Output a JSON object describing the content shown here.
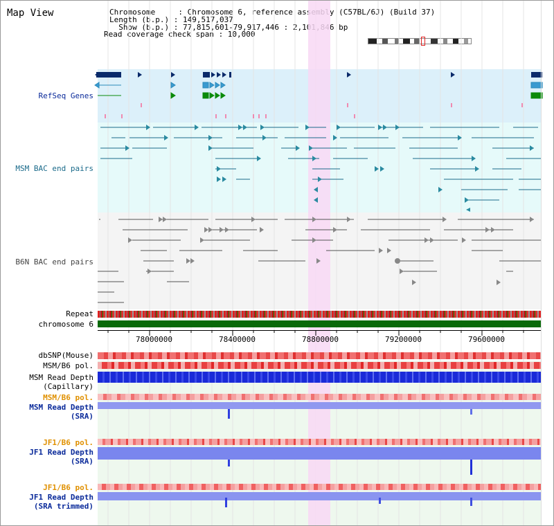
{
  "title": "Map View",
  "info": {
    "line1": "Chromosome     : Chromosome 6, reference assembly (C57BL/6J) (Build 37)",
    "line2": "Length (b.p.) : 149,517,037",
    "line3": "  Show (b.p.) : 77,815,601-79,917,446 : 2,101,846 bp",
    "line4": "Read coverage check span : 10,000"
  },
  "tracks": {
    "refseq": "RefSeq Genes",
    "msm_bac": "MSM BAC end pairs",
    "b6n_bac": "B6N BAC end pairs",
    "repeat": "Repeat",
    "chromosome": "chromosome 6",
    "dbsnp": "dbSNP(Mouse)",
    "msm_b6_pol": "MSM/B6 pol.",
    "msm_depth_cap_1": "MSM Read Depth",
    "msm_depth_cap_2": "(Capillary)",
    "msm_b6_pol_2": "MSM/B6 pol.",
    "msm_depth_sra_1": "MSM Read Depth",
    "msm_depth_sra_2": "(SRA)",
    "jf1_b6_pol": "JF1/B6 pol.",
    "jf1_depth_sra_1": "JF1 Read Depth",
    "jf1_depth_sra_2": "(SRA)",
    "jf1_b6_pol_2": "JF1/B6 pol.",
    "jf1_depth_trim_1": "JF1 Read Depth",
    "jf1_depth_trim_2": "(SRA trimmed)"
  },
  "axis_ticks": [
    "78000000",
    "78400000",
    "78800000",
    "79200000",
    "79600000"
  ],
  "colors": {
    "refseq_bg": "#dcf0fa",
    "bac_bg": "#e6fafa",
    "highlight": "#f8d8f4",
    "chromosome": "#0a6a0a",
    "depth_blue": "#2a3ae0",
    "depth_light": "#7a86ee"
  }
}
